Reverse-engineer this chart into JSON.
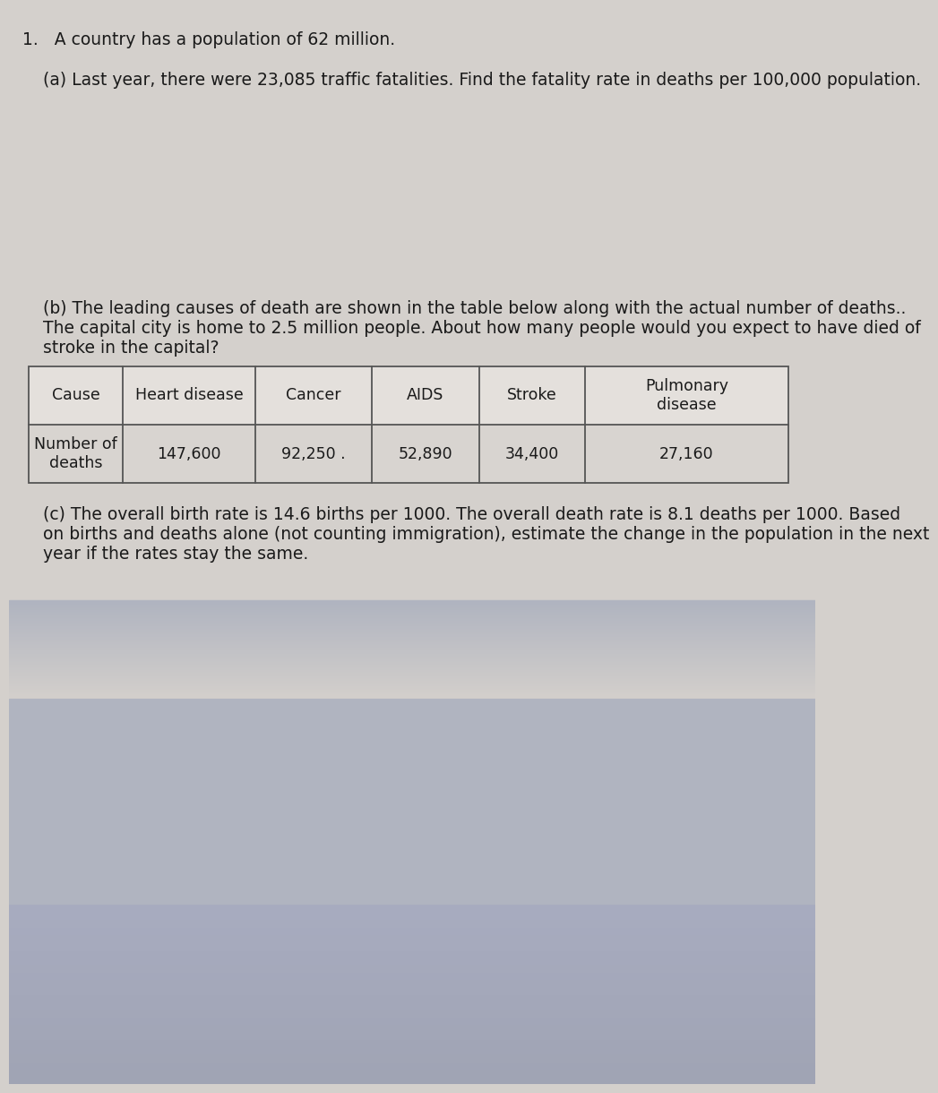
{
  "bg_top_color": "#d4d0cc",
  "bg_bottom_color": "#a8b0be",
  "bg_mid_color": "#b8bcc6",
  "text_color": "#1a1a1a",
  "problem_number": "1.",
  "intro_text": "A country has a population of 62 million.",
  "part_a_label": "(a)",
  "part_a_text": "Last year, there were 23,085 traffic fatalities. Find the fatality rate in deaths per 100,000 population.",
  "part_b_line1": "(b) The leading causes of death are shown in the table below along with the actual number of deaths..",
  "part_b_line2": "The capital city is home to 2.5 million people. About how many people would you expect to have died of",
  "part_b_line3": "stroke in the capital?",
  "table_headers": [
    "Cause",
    "Heart disease",
    "Cancer",
    "AIDS",
    "Stroke",
    "Pulmonary\ndisease"
  ],
  "table_row_label": "Number of\ndeaths",
  "table_values": [
    "147,600",
    "92,250 .",
    "52,890",
    "34,400",
    "27,160"
  ],
  "part_c_line1": "(c) The overall birth rate is 14.6 births per 1000. The overall death rate is 8.1 deaths per 1000. Based",
  "part_c_line2": "on births and deaths alone (not counting immigration), estimate the change in the population in the next",
  "part_c_line3": "year if the rates stay the same.",
  "table_cell_color_header": "#e4e0dc",
  "table_cell_color_data": "#d8d4d0",
  "table_border_color": "#555555",
  "font_size_main": 13.5,
  "font_size_table": 12.5
}
